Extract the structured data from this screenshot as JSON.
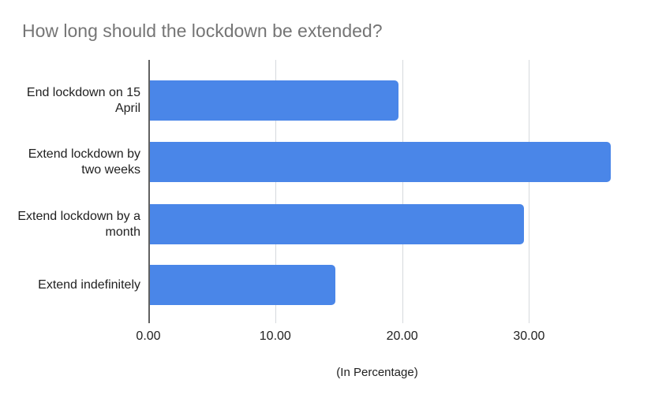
{
  "chart": {
    "title": "How long should the lockdown be extended?",
    "axis_note": "(In Percentage)"
  },
  "chart_data": {
    "type": "bar",
    "orientation": "horizontal",
    "title": "How long should the lockdown be extended?",
    "categories": [
      "End lockdown on 15 April",
      "Extend lockdown by two weeks",
      "Extend lockdown by a month",
      "Extend indefinitely"
    ],
    "values": [
      19.6,
      36.3,
      29.5,
      14.6
    ],
    "xlabel": "(In Percentage)",
    "ylabel": "",
    "xlim": [
      0,
      37.5
    ],
    "x_ticks": [
      0,
      10,
      20,
      30
    ],
    "x_tick_labels": [
      "0.00",
      "10.00",
      "20.00",
      "30.00"
    ],
    "grid": true,
    "legend": false,
    "colors": {
      "bar": "#4a86e8",
      "title": "#757575",
      "gridline": "#d6d9dd",
      "axis_line": "#616161",
      "label_text": "#212121"
    }
  }
}
